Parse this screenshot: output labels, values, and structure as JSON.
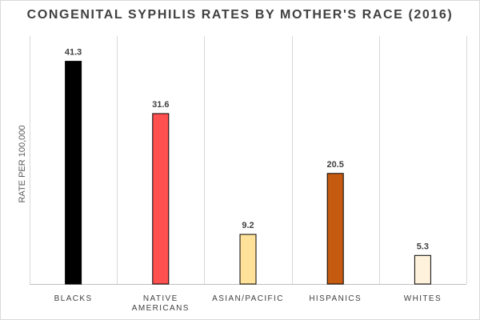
{
  "chart_data": {
    "type": "bar",
    "title": "CONGENITAL SYPHILIS RATES BY MOTHER'S RACE (2016)",
    "ylabel": "RATE PER 100,000",
    "xlabel": "",
    "categories": [
      [
        "BLACKS"
      ],
      [
        "NATIVE",
        "AMERICANS"
      ],
      [
        "ASIAN/PACIFIC"
      ],
      [
        "HISPANICS"
      ],
      [
        "WHITES"
      ]
    ],
    "values": [
      41.3,
      31.6,
      9.2,
      20.5,
      5.3
    ],
    "value_labels": [
      "41.3",
      "31.6",
      "9.2",
      "20.5",
      "5.3"
    ],
    "colors": [
      "#000000",
      "#ff5050",
      "#ffe199",
      "#c55a11",
      "#fff2dc"
    ],
    "ylim": [
      0,
      44.5
    ],
    "grid": "vertical-category-separators",
    "legend": "none"
  }
}
